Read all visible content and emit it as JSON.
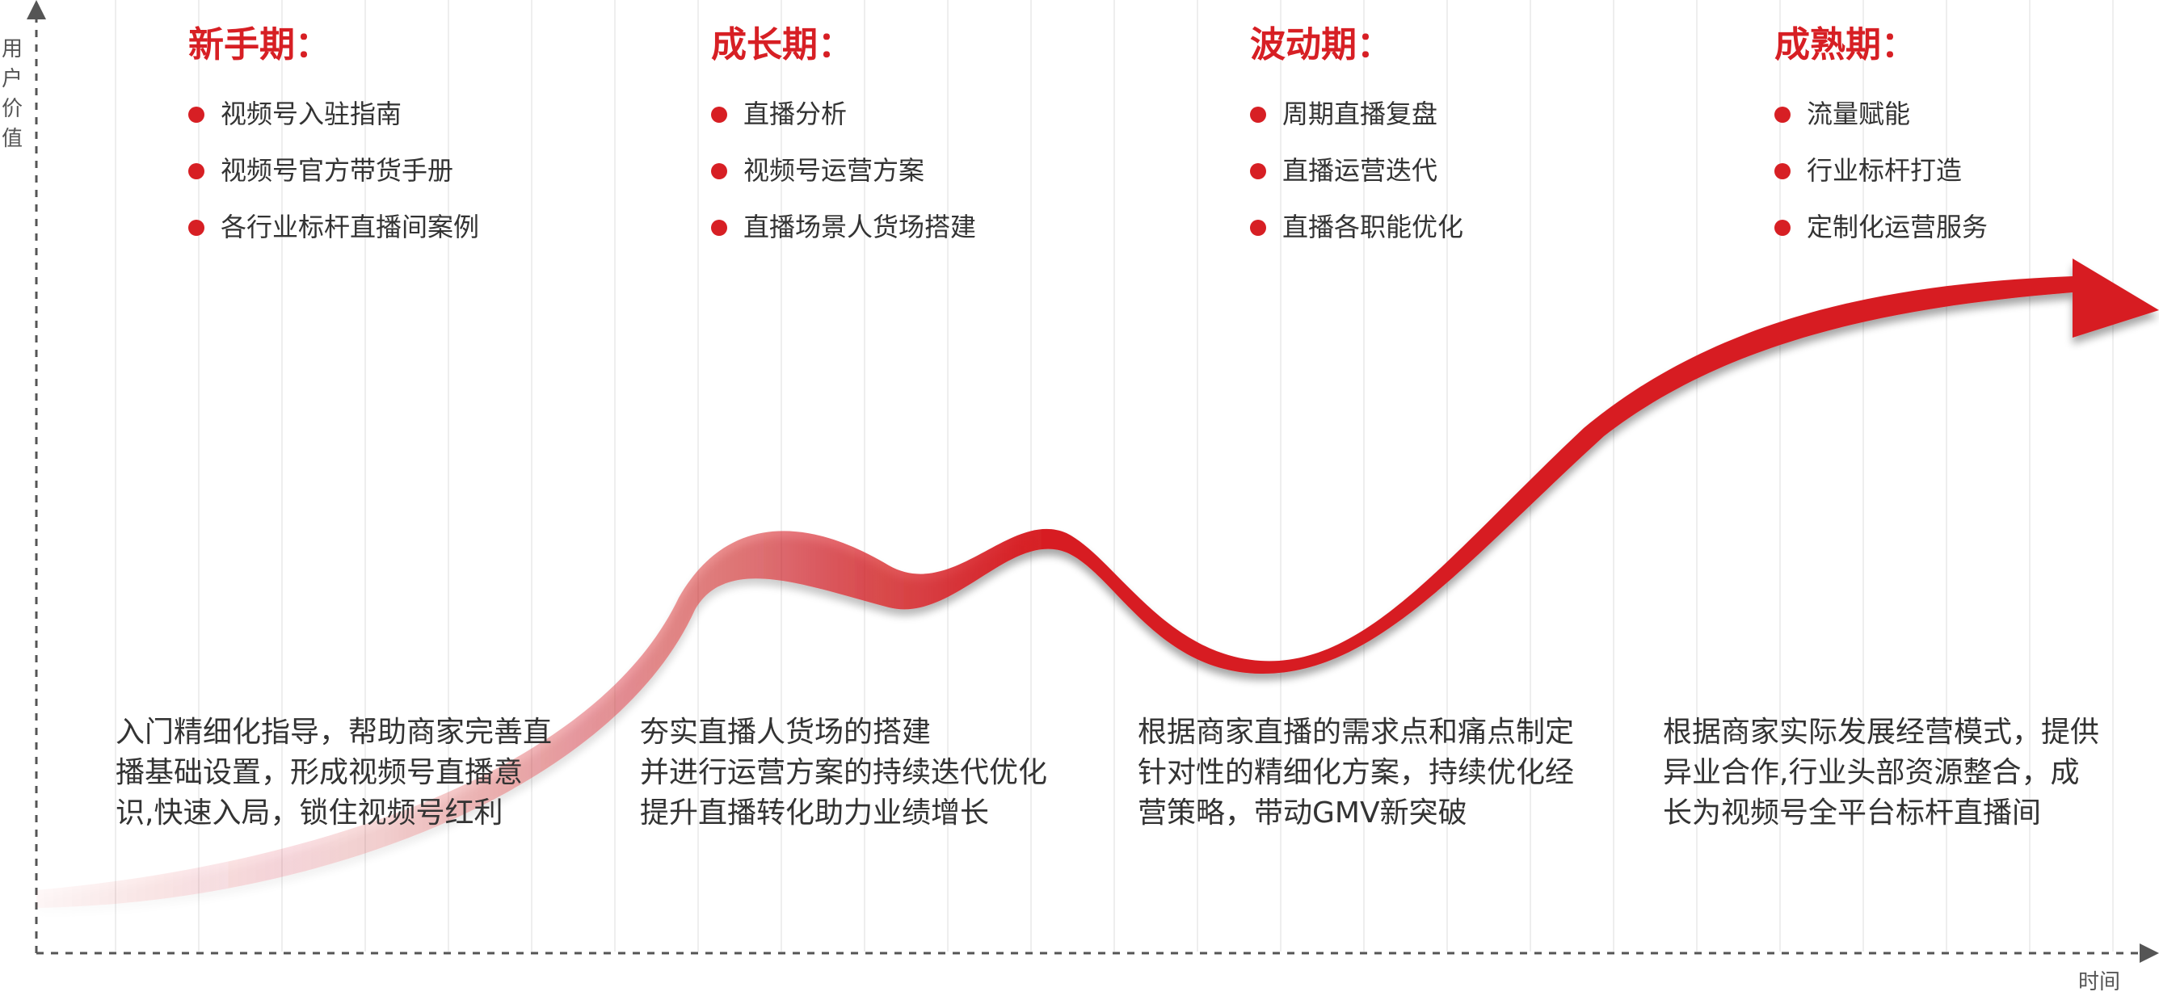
{
  "axes": {
    "y_label": [
      "用",
      "户",
      "价",
      "值"
    ],
    "x_label": "时间"
  },
  "stages": [
    {
      "title": "新手期：",
      "bullets": [
        "视频号入驻指南",
        "视频号官方带货手册",
        "各行业标杆直播间案例"
      ],
      "description": [
        "入门精细化指导，帮助商家完善直",
        "播基础设置，形成视频号直播意",
        "识,快速入局，锁住视频号红利"
      ]
    },
    {
      "title": "成长期：",
      "bullets": [
        "直播分析",
        "视频号运营方案",
        "直播场景人货场搭建"
      ],
      "description": [
        "夯实直播人货场的搭建",
        "并进行运营方案的持续迭代优化",
        "提升直播转化助力业绩增长"
      ]
    },
    {
      "title": "波动期：",
      "bullets": [
        "周期直播复盘",
        "直播运营迭代",
        "直播各职能优化"
      ],
      "description": [
        "根据商家直播的需求点和痛点制定",
        "针对性的精细化方案，持续优化经",
        "营策略，带动GMV新突破"
      ]
    },
    {
      "title": "成熟期：",
      "bullets": [
        "流量赋能",
        "行业标杆打造",
        "定制化运营服务"
      ],
      "description": [
        "根据商家实际发展经营模式，提供",
        "异业合作,行业头部资源整合，成",
        "长为视频号全平台标杆直播间"
      ]
    }
  ],
  "colors": {
    "accent": "#d71f24",
    "axis": "#555555",
    "grid": "#eeeeee"
  }
}
